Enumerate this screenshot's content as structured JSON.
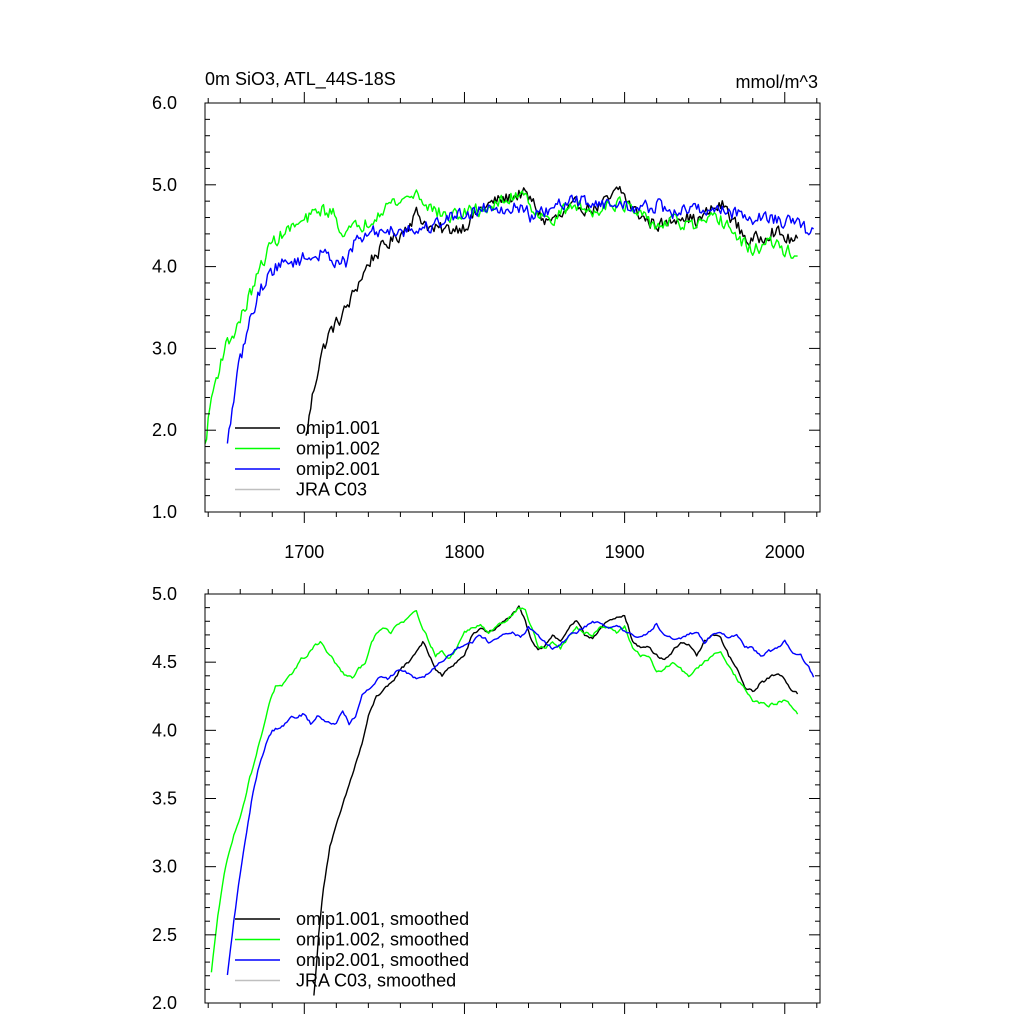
{
  "chart_data": [
    {
      "type": "line",
      "title": "0m SiO3, ATL_44S-18S",
      "units": "mmol/m^3",
      "xlim": [
        1638,
        2022
      ],
      "ylim": [
        1.0,
        6.0
      ],
      "x_ticks": [
        1700,
        1800,
        1900,
        2000
      ],
      "x_tick_labels": [
        "1700",
        "1800",
        "1900",
        "2000"
      ],
      "y_ticks": [
        1.0,
        2.0,
        3.0,
        4.0,
        5.0,
        6.0
      ],
      "y_tick_labels": [
        "1.0",
        "2.0",
        "3.0",
        "4.0",
        "5.0",
        "6.0"
      ],
      "legend": {
        "location": "bottom-left",
        "entries": [
          "omip1.001",
          "omip1.002",
          "omip2.001",
          "JRA C03"
        ]
      },
      "series": [
        {
          "name": "omip1.001",
          "color": "#000000",
          "noise": 0.12,
          "x": [
            1701,
            1705,
            1710,
            1716,
            1722,
            1728,
            1735,
            1742,
            1750,
            1760,
            1770,
            1780,
            1790,
            1800,
            1810,
            1820,
            1830,
            1836,
            1842,
            1850,
            1860,
            1870,
            1880,
            1890,
            1897,
            1905,
            1915,
            1925,
            1935,
            1945,
            1955,
            1962,
            1970,
            1978,
            1985,
            1992,
            2000,
            2008
          ],
          "y": [
            1.9,
            2.4,
            2.9,
            3.2,
            3.35,
            3.55,
            3.85,
            4.1,
            4.25,
            4.4,
            4.65,
            4.45,
            4.45,
            4.5,
            4.7,
            4.8,
            4.85,
            4.9,
            4.8,
            4.55,
            4.6,
            4.75,
            4.7,
            4.8,
            4.95,
            4.7,
            4.55,
            4.5,
            4.65,
            4.55,
            4.7,
            4.75,
            4.5,
            4.3,
            4.35,
            4.45,
            4.35,
            4.3
          ]
        },
        {
          "name": "omip1.002",
          "color": "#00ff00",
          "noise": 0.12,
          "x": [
            1638,
            1642,
            1646,
            1650,
            1655,
            1660,
            1665,
            1670,
            1675,
            1680,
            1690,
            1700,
            1710,
            1718,
            1725,
            1730,
            1740,
            1750,
            1760,
            1770,
            1780,
            1790,
            1800,
            1810,
            1820,
            1830,
            1836,
            1842,
            1850,
            1860,
            1870,
            1880,
            1890,
            1900,
            1910,
            1920,
            1930,
            1940,
            1950,
            1958,
            1965,
            1972,
            1980,
            1990,
            2000,
            2008
          ],
          "y": [
            1.8,
            2.4,
            2.7,
            3.0,
            3.15,
            3.35,
            3.6,
            3.85,
            4.1,
            4.3,
            4.45,
            4.55,
            4.7,
            4.65,
            4.4,
            4.45,
            4.55,
            4.75,
            4.8,
            4.9,
            4.7,
            4.6,
            4.65,
            4.7,
            4.75,
            4.85,
            4.95,
            4.75,
            4.55,
            4.65,
            4.75,
            4.65,
            4.8,
            4.75,
            4.6,
            4.5,
            4.55,
            4.5,
            4.5,
            4.6,
            4.5,
            4.3,
            4.2,
            4.3,
            4.2,
            4.15
          ]
        },
        {
          "name": "omip2.001",
          "color": "#0000ff",
          "noise": 0.12,
          "x": [
            1652,
            1656,
            1660,
            1665,
            1670,
            1676,
            1682,
            1690,
            1700,
            1710,
            1718,
            1726,
            1732,
            1740,
            1750,
            1760,
            1770,
            1780,
            1790,
            1800,
            1810,
            1820,
            1830,
            1836,
            1842,
            1850,
            1860,
            1870,
            1880,
            1890,
            1900,
            1910,
            1920,
            1930,
            1940,
            1950,
            1960,
            1970,
            1980,
            1990,
            2000,
            2010,
            2018
          ],
          "y": [
            1.8,
            2.4,
            2.85,
            3.25,
            3.6,
            3.85,
            4.0,
            4.05,
            4.1,
            4.15,
            4.1,
            4.05,
            4.3,
            4.4,
            4.45,
            4.45,
            4.45,
            4.5,
            4.6,
            4.65,
            4.7,
            4.75,
            4.7,
            4.75,
            4.6,
            4.65,
            4.75,
            4.8,
            4.8,
            4.75,
            4.75,
            4.7,
            4.75,
            4.65,
            4.7,
            4.7,
            4.7,
            4.65,
            4.6,
            4.6,
            4.55,
            4.5,
            4.4
          ]
        }
      ]
    },
    {
      "type": "line",
      "title": "",
      "xlim": [
        1638,
        2022
      ],
      "ylim": [
        2.0,
        5.0
      ],
      "x_ticks": [
        1700,
        1800,
        1900,
        2000
      ],
      "y_ticks": [
        2.0,
        2.5,
        3.0,
        3.5,
        4.0,
        4.5,
        5.0
      ],
      "y_tick_labels": [
        "2.0",
        "2.5",
        "3.0",
        "3.5",
        "4.0",
        "4.5",
        "5.0"
      ],
      "legend": {
        "location": "bottom-left",
        "entries": [
          "omip1.001, smoothed",
          "omip1.002, smoothed",
          "omip2.001, smoothed",
          "JRA C03, smoothed"
        ]
      },
      "series": [
        {
          "name": "omip1.001, smoothed",
          "color": "#000000",
          "noise": 0.015,
          "x": [
            1706,
            1709,
            1712,
            1716,
            1720,
            1724,
            1728,
            1732,
            1736,
            1740,
            1745,
            1750,
            1755,
            1760,
            1765,
            1770,
            1774,
            1778,
            1782,
            1786,
            1790,
            1795,
            1800,
            1805,
            1810,
            1815,
            1820,
            1825,
            1830,
            1834,
            1838,
            1842,
            1846,
            1850,
            1855,
            1860,
            1865,
            1870,
            1875,
            1880,
            1885,
            1890,
            1895,
            1900,
            1905,
            1910,
            1915,
            1920,
            1925,
            1930,
            1935,
            1940,
            1945,
            1950,
            1955,
            1960,
            1965,
            1970,
            1975,
            1980,
            1985,
            1990,
            1995,
            2000,
            2004,
            2008
          ],
          "y": [
            2.05,
            2.5,
            2.85,
            3.15,
            3.3,
            3.45,
            3.6,
            3.75,
            3.9,
            4.1,
            4.25,
            4.3,
            4.35,
            4.45,
            4.5,
            4.58,
            4.65,
            4.55,
            4.45,
            4.4,
            4.45,
            4.5,
            4.55,
            4.7,
            4.75,
            4.72,
            4.75,
            4.8,
            4.85,
            4.9,
            4.8,
            4.65,
            4.6,
            4.62,
            4.7,
            4.65,
            4.75,
            4.8,
            4.7,
            4.68,
            4.75,
            4.8,
            4.82,
            4.85,
            4.65,
            4.6,
            4.62,
            4.55,
            4.52,
            4.58,
            4.65,
            4.62,
            4.55,
            4.65,
            4.7,
            4.68,
            4.55,
            4.45,
            4.32,
            4.28,
            4.35,
            4.38,
            4.42,
            4.38,
            4.3,
            4.27
          ]
        },
        {
          "name": "omip1.002, smoothed",
          "color": "#00ff00",
          "noise": 0.015,
          "x": [
            1642,
            1646,
            1650,
            1654,
            1658,
            1662,
            1666,
            1670,
            1674,
            1678,
            1682,
            1686,
            1690,
            1694,
            1698,
            1702,
            1706,
            1710,
            1714,
            1718,
            1722,
            1726,
            1730,
            1734,
            1738,
            1742,
            1746,
            1750,
            1754,
            1758,
            1762,
            1766,
            1770,
            1774,
            1778,
            1782,
            1786,
            1790,
            1795,
            1800,
            1805,
            1810,
            1815,
            1820,
            1825,
            1830,
            1834,
            1838,
            1842,
            1846,
            1850,
            1855,
            1860,
            1865,
            1870,
            1875,
            1880,
            1885,
            1890,
            1895,
            1900,
            1905,
            1910,
            1915,
            1920,
            1925,
            1930,
            1935,
            1940,
            1945,
            1950,
            1955,
            1960,
            1965,
            1970,
            1975,
            1980,
            1985,
            1990,
            1995,
            2000,
            2004,
            2008
          ],
          "y": [
            2.22,
            2.65,
            2.95,
            3.15,
            3.3,
            3.45,
            3.65,
            3.82,
            4.0,
            4.2,
            4.32,
            4.32,
            4.38,
            4.45,
            4.52,
            4.55,
            4.62,
            4.65,
            4.58,
            4.52,
            4.45,
            4.4,
            4.38,
            4.45,
            4.5,
            4.65,
            4.72,
            4.75,
            4.72,
            4.78,
            4.8,
            4.85,
            4.88,
            4.75,
            4.65,
            4.55,
            4.58,
            4.52,
            4.6,
            4.72,
            4.75,
            4.78,
            4.72,
            4.76,
            4.8,
            4.85,
            4.9,
            4.88,
            4.75,
            4.62,
            4.6,
            4.65,
            4.6,
            4.68,
            4.75,
            4.72,
            4.7,
            4.76,
            4.76,
            4.72,
            4.76,
            4.6,
            4.55,
            4.55,
            4.42,
            4.45,
            4.5,
            4.45,
            4.4,
            4.45,
            4.5,
            4.55,
            4.58,
            4.48,
            4.38,
            4.3,
            4.22,
            4.2,
            4.18,
            4.2,
            4.22,
            4.18,
            4.12
          ]
        },
        {
          "name": "omip2.001, smoothed",
          "color": "#0000ff",
          "noise": 0.015,
          "x": [
            1652,
            1656,
            1660,
            1664,
            1668,
            1672,
            1676,
            1680,
            1684,
            1688,
            1692,
            1696,
            1700,
            1704,
            1708,
            1712,
            1716,
            1720,
            1724,
            1728,
            1732,
            1736,
            1740,
            1744,
            1748,
            1752,
            1756,
            1760,
            1765,
            1770,
            1775,
            1780,
            1785,
            1790,
            1795,
            1800,
            1805,
            1810,
            1815,
            1820,
            1825,
            1830,
            1835,
            1840,
            1845,
            1850,
            1855,
            1860,
            1865,
            1870,
            1875,
            1880,
            1885,
            1890,
            1895,
            1900,
            1905,
            1910,
            1915,
            1920,
            1925,
            1930,
            1935,
            1940,
            1945,
            1950,
            1955,
            1960,
            1965,
            1970,
            1975,
            1980,
            1985,
            1990,
            1995,
            2000,
            2005,
            2010,
            2014,
            2018
          ],
          "y": [
            2.2,
            2.6,
            2.95,
            3.25,
            3.55,
            3.75,
            3.9,
            4.0,
            4.02,
            4.05,
            4.1,
            4.1,
            4.12,
            4.05,
            4.1,
            4.08,
            4.05,
            4.05,
            4.15,
            4.05,
            4.1,
            4.25,
            4.3,
            4.35,
            4.4,
            4.38,
            4.42,
            4.45,
            4.42,
            4.38,
            4.4,
            4.45,
            4.5,
            4.55,
            4.6,
            4.62,
            4.65,
            4.7,
            4.65,
            4.68,
            4.7,
            4.72,
            4.68,
            4.75,
            4.7,
            4.65,
            4.6,
            4.62,
            4.7,
            4.72,
            4.76,
            4.8,
            4.78,
            4.75,
            4.78,
            4.72,
            4.7,
            4.68,
            4.72,
            4.78,
            4.7,
            4.68,
            4.68,
            4.7,
            4.72,
            4.65,
            4.7,
            4.72,
            4.68,
            4.7,
            4.62,
            4.6,
            4.55,
            4.58,
            4.6,
            4.65,
            4.58,
            4.55,
            4.48,
            4.4
          ]
        }
      ]
    }
  ]
}
